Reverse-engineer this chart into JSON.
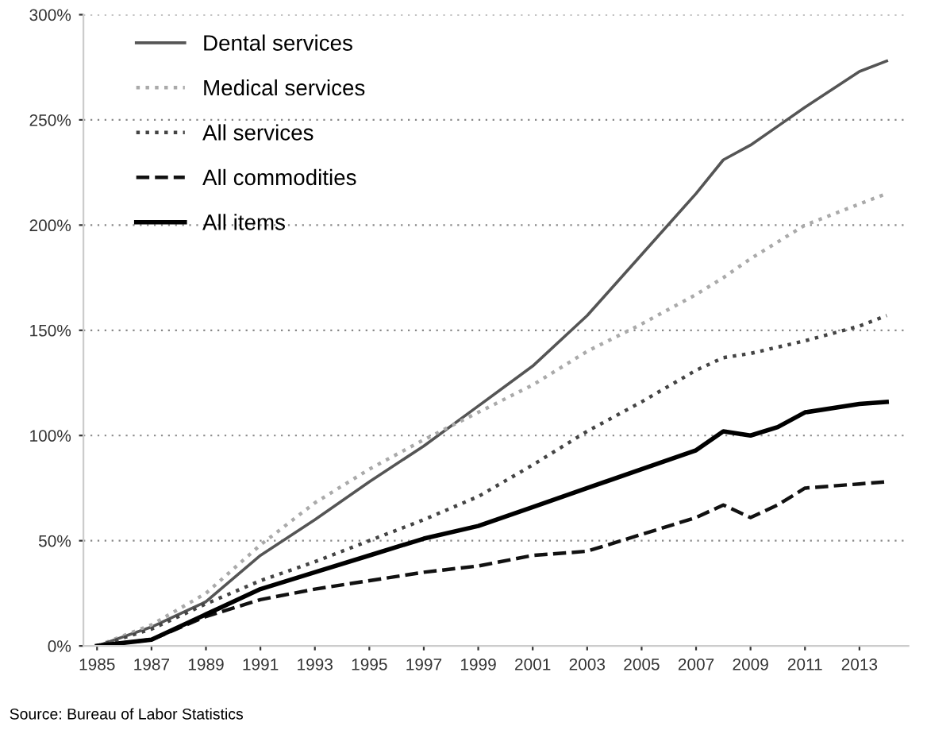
{
  "chart_data": {
    "type": "line",
    "x": [
      1985,
      1987,
      1989,
      1991,
      1993,
      1995,
      1997,
      1999,
      2001,
      2003,
      2005,
      2007,
      2008,
      2009,
      2010,
      2011,
      2013,
      2014
    ],
    "series": [
      {
        "name": "Dental services",
        "color": "#555555",
        "line_style": "solid",
        "values": [
          0,
          9,
          21,
          43,
          60,
          78,
          95,
          114,
          133,
          157,
          186,
          215,
          231,
          238,
          247,
          256,
          273,
          278
        ]
      },
      {
        "name": "Medical services",
        "color": "#aaaaaa",
        "line_style": "dotted",
        "values": [
          0,
          10,
          25,
          48,
          68,
          84,
          98,
          111,
          124,
          140,
          153,
          167,
          175,
          184,
          192,
          200,
          210,
          215
        ]
      },
      {
        "name": "All services",
        "color": "#444444",
        "line_style": "dotted",
        "values": [
          0,
          8,
          20,
          31,
          40,
          50,
          60,
          71,
          86,
          102,
          116,
          131,
          137,
          139,
          142,
          145,
          152,
          157
        ]
      },
      {
        "name": "All commodities",
        "color": "#111111",
        "line_style": "dashed",
        "values": [
          0,
          3,
          14,
          22,
          27,
          31,
          35,
          38,
          43,
          45,
          53,
          61,
          67,
          61,
          67,
          75,
          77,
          78
        ]
      },
      {
        "name": "All items",
        "color": "#000000",
        "line_style": "solid",
        "values": [
          0,
          3,
          15,
          27,
          35,
          43,
          51,
          57,
          66,
          75,
          84,
          93,
          102,
          100,
          104,
          111,
          115,
          116
        ]
      }
    ],
    "xlim": [
      1984.5,
      2014.8
    ],
    "xticks": [
      1985,
      1987,
      1989,
      1991,
      1993,
      1995,
      1997,
      1999,
      2001,
      2003,
      2005,
      2007,
      2009,
      2011,
      2013
    ],
    "ylim": [
      0,
      300
    ],
    "yticks": [
      {
        "value": 0,
        "label": "0%"
      },
      {
        "value": 50,
        "label": "50%"
      },
      {
        "value": 100,
        "label": "100%"
      },
      {
        "value": 150,
        "label": "150%"
      },
      {
        "value": 200,
        "label": "200%"
      },
      {
        "value": 250,
        "label": "250%"
      },
      {
        "value": 300,
        "label": "300%"
      }
    ],
    "grid": "y",
    "legend": "top left",
    "marker": "none",
    "annotations": [
      "Source: Bureau of Labor Statistics"
    ]
  }
}
